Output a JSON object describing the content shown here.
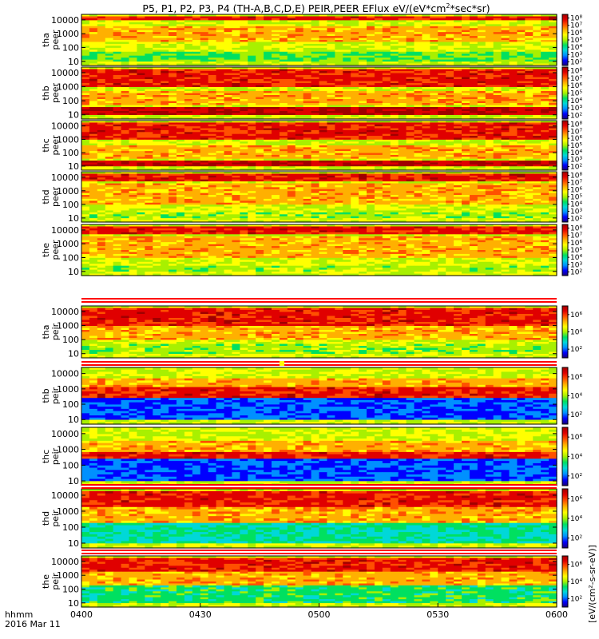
{
  "figure": {
    "title": "P5, P1, P2, P3, P4 (TH-A,B,C,D,E) PEIR,PEER EFlux eV/(eV*cm",
    "title_sup": "2",
    "title_tail": "*sec*sr)",
    "colorbar_unit_label": "[eV/(cm²-s-sr-eV)]",
    "x_tick_labels": [
      "0400",
      "0430",
      "0500",
      "0530",
      "0600"
    ],
    "x_axis_label_line1": "hhmm",
    "x_axis_label_line2": "2016 Mar 11"
  },
  "chart_data": [
    {
      "type": "heatmap",
      "ylabel_line1": "tha",
      "ylabel_line2": "peer",
      "y_scale": "log",
      "y_tick_labels": [
        "10000",
        "1000",
        "100",
        "10"
      ],
      "colorbar_tick_labels": [
        "10⁸",
        "10⁷",
        "10⁶",
        "10⁵",
        "10⁴",
        "10³",
        "10²"
      ],
      "pattern": {
        "hi_band": [
          10000,
          20000
        ],
        "mid_band": [
          300,
          3000
        ],
        "low_band": [
          10,
          50
        ],
        "low_level": 0.45
      }
    },
    {
      "type": "heatmap",
      "ylabel_line1": "thb",
      "ylabel_line2": "peer",
      "y_scale": "log",
      "y_tick_labels": [
        "10000",
        "1000",
        "100",
        "10"
      ],
      "colorbar_tick_labels": [
        "10⁸",
        "10⁷",
        "10⁶",
        "10⁵",
        "10⁴",
        "10³",
        "10²"
      ],
      "pattern": {
        "hi_band": [
          1000,
          20000
        ],
        "mid_band": [
          50,
          500
        ],
        "low_band": [
          10,
          40
        ],
        "low_level": 0.95
      }
    },
    {
      "type": "heatmap",
      "ylabel_line1": "thc",
      "ylabel_line2": "peer",
      "y_scale": "log",
      "y_tick_labels": [
        "10000",
        "1000",
        "100",
        "10"
      ],
      "colorbar_tick_labels": [
        "10⁸",
        "10⁷",
        "10⁶",
        "10⁵",
        "10⁴",
        "10³",
        "10²"
      ],
      "pattern": {
        "hi_band": [
          1000,
          20000
        ],
        "mid_band": [
          40,
          400
        ],
        "low_band": [
          10,
          30
        ],
        "low_level": 0.95
      }
    },
    {
      "type": "heatmap",
      "ylabel_line1": "thd",
      "ylabel_line2": "peer",
      "y_scale": "log",
      "y_tick_labels": [
        "10000",
        "1000",
        "100",
        "10"
      ],
      "colorbar_tick_labels": [
        "10⁸",
        "10⁷",
        "10⁶",
        "10⁵",
        "10⁴",
        "10³",
        "10²"
      ],
      "pattern": {
        "hi_band": [
          5000,
          20000
        ],
        "mid_band": [
          100,
          3000
        ],
        "low_band": [
          10,
          30
        ],
        "low_level": 0.5
      }
    },
    {
      "type": "heatmap",
      "ylabel_line1": "the",
      "ylabel_line2": "peer",
      "y_scale": "log",
      "y_tick_labels": [
        "10000",
        "1000",
        "100",
        "10"
      ],
      "colorbar_tick_labels": [
        "10⁸",
        "10⁷",
        "10⁶",
        "10⁵",
        "10⁴",
        "10³",
        "10²"
      ],
      "pattern": {
        "hi_band": [
          5000,
          20000
        ],
        "mid_band": [
          100,
          3000
        ],
        "low_band": [
          10,
          30
        ],
        "low_level": 0.5
      }
    },
    {
      "type": "heatmap",
      "ylabel_line1": "tha",
      "ylabel_line2": "peir",
      "y_scale": "log",
      "y_tick_labels": [
        "10000",
        "1000",
        "100",
        "10"
      ],
      "colorbar_tick_labels": [
        "10⁶",
        "10⁴",
        "10²"
      ],
      "pattern": {
        "hi_band": [
          1000,
          20000
        ],
        "mid_band": [
          100,
          1000
        ],
        "low_band": [
          10,
          50
        ],
        "low_level": 0.5
      }
    },
    {
      "type": "heatmap",
      "ylabel_line1": "thb",
      "ylabel_line2": "peir",
      "y_scale": "log",
      "y_tick_labels": [
        "10000",
        "1000",
        "100",
        "10"
      ],
      "colorbar_tick_labels": [
        "10⁶",
        "10⁴",
        "10²"
      ],
      "pattern": {
        "hi_band": [
          300,
          1500
        ],
        "mid_band": [
          1500,
          5000
        ],
        "low_band": [
          10,
          300
        ],
        "low_level": 0.15
      }
    },
    {
      "type": "heatmap",
      "ylabel_line1": "thc",
      "ylabel_line2": "peir",
      "y_scale": "log",
      "y_tick_labels": [
        "10000",
        "1000",
        "100",
        "10"
      ],
      "colorbar_tick_labels": [
        "10⁶",
        "10⁴",
        "10²"
      ],
      "pattern": {
        "hi_band": [
          250,
          600
        ],
        "mid_band": [
          600,
          3000
        ],
        "low_band": [
          10,
          250
        ],
        "low_level": 0.15
      }
    },
    {
      "type": "heatmap",
      "ylabel_line1": "thd",
      "ylabel_line2": "peir",
      "y_scale": "log",
      "y_tick_labels": [
        "10000",
        "1000",
        "100",
        "10"
      ],
      "colorbar_tick_labels": [
        "10⁶",
        "10⁴",
        "10²"
      ],
      "pattern": {
        "hi_band": [
          2000,
          20000
        ],
        "mid_band": [
          200,
          2000
        ],
        "low_band": [
          10,
          200
        ],
        "low_level": 0.35
      }
    },
    {
      "type": "heatmap",
      "ylabel_line1": "the",
      "ylabel_line2": "peir",
      "y_scale": "log",
      "y_tick_labels": [
        "10000",
        "1000",
        "100",
        "10"
      ],
      "colorbar_tick_labels": [
        "10⁶",
        "10⁴",
        "10²"
      ],
      "pattern": {
        "hi_band": [
          2000,
          20000
        ],
        "mid_band": [
          200,
          2000
        ],
        "low_band": [
          10,
          200
        ],
        "low_level": 0.4
      }
    }
  ],
  "colors": {
    "colormap": [
      "#1a0078",
      "#0000ff",
      "#0090ff",
      "#00d8d8",
      "#00e060",
      "#a8f000",
      "#ffff00",
      "#ffb000",
      "#ff5000",
      "#e00000",
      "#a00000"
    ],
    "flag_bar": "#ff0000",
    "flag_fill": "#ffffff",
    "flag_marker": "#ffff00"
  }
}
